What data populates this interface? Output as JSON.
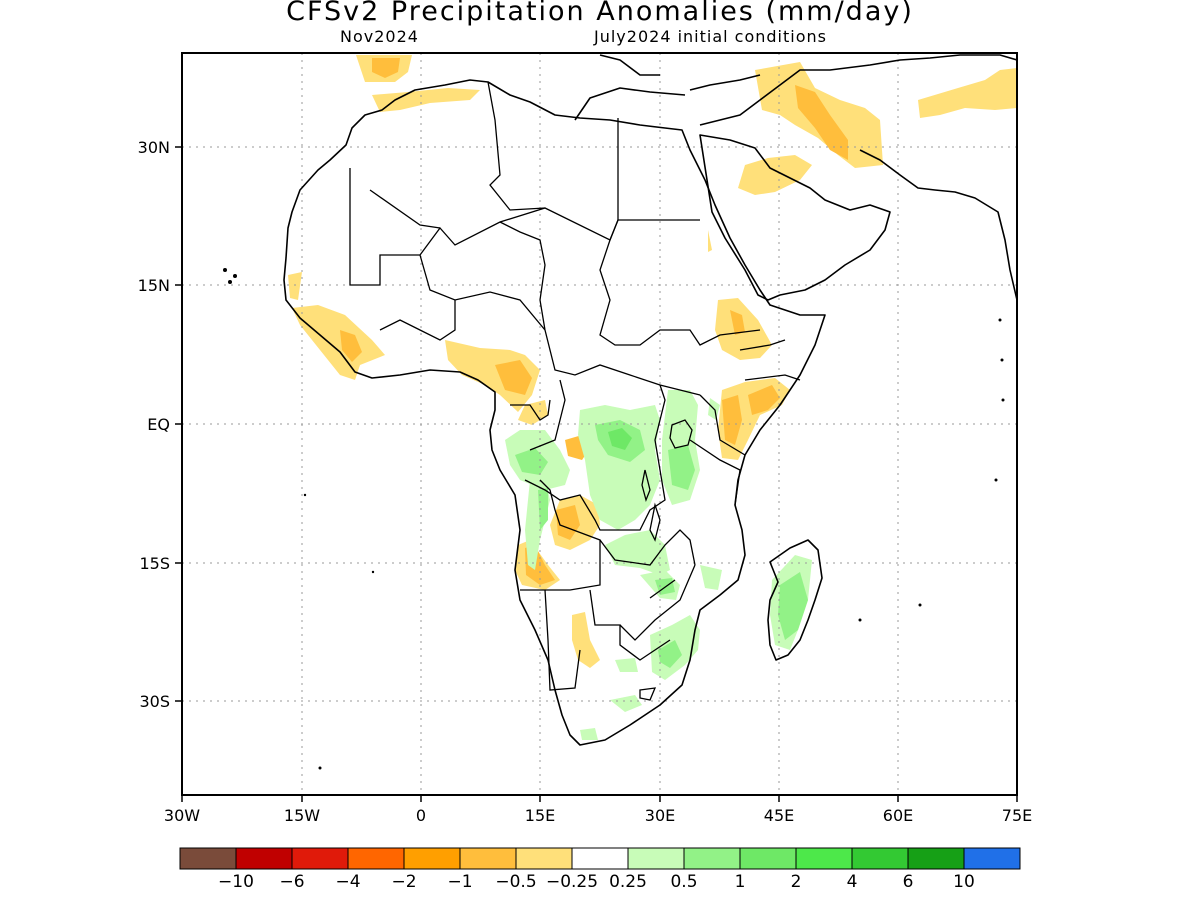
{
  "title": "CFSv2 Precipitation Anomalies (mm/day)",
  "subtitle_left": "Nov2024",
  "subtitle_right": "July2024 initial conditions",
  "lon_ticks": [
    "30W",
    "15W",
    "0",
    "15E",
    "30E",
    "45E",
    "60E",
    "75E"
  ],
  "lat_ticks": [
    "30N",
    "15N",
    "EQ",
    "15S",
    "30S"
  ],
  "colorbar": {
    "colors": [
      "#7a4b3a",
      "#c00000",
      "#e01a0a",
      "#ff6600",
      "#ff9f00",
      "#ffbe3c",
      "#ffe07a",
      "#ffffff",
      "#c8fcb8",
      "#92f287",
      "#6ee866",
      "#4de84a",
      "#33c933",
      "#16a016",
      "#2070e8"
    ],
    "labels": [
      "−10",
      "−6",
      "−4",
      "−2",
      "−1",
      "−0.5",
      "−0.25",
      "0.25",
      "0.5",
      "1",
      "2",
      "4",
      "6",
      "10"
    ]
  },
  "colors": {
    "negative_light": "#ffe07a",
    "negative_mid": "#ffbe3c",
    "positive_light": "#c8fcb8",
    "positive_mid": "#92f287",
    "positive_strong": "#6ee866"
  }
}
